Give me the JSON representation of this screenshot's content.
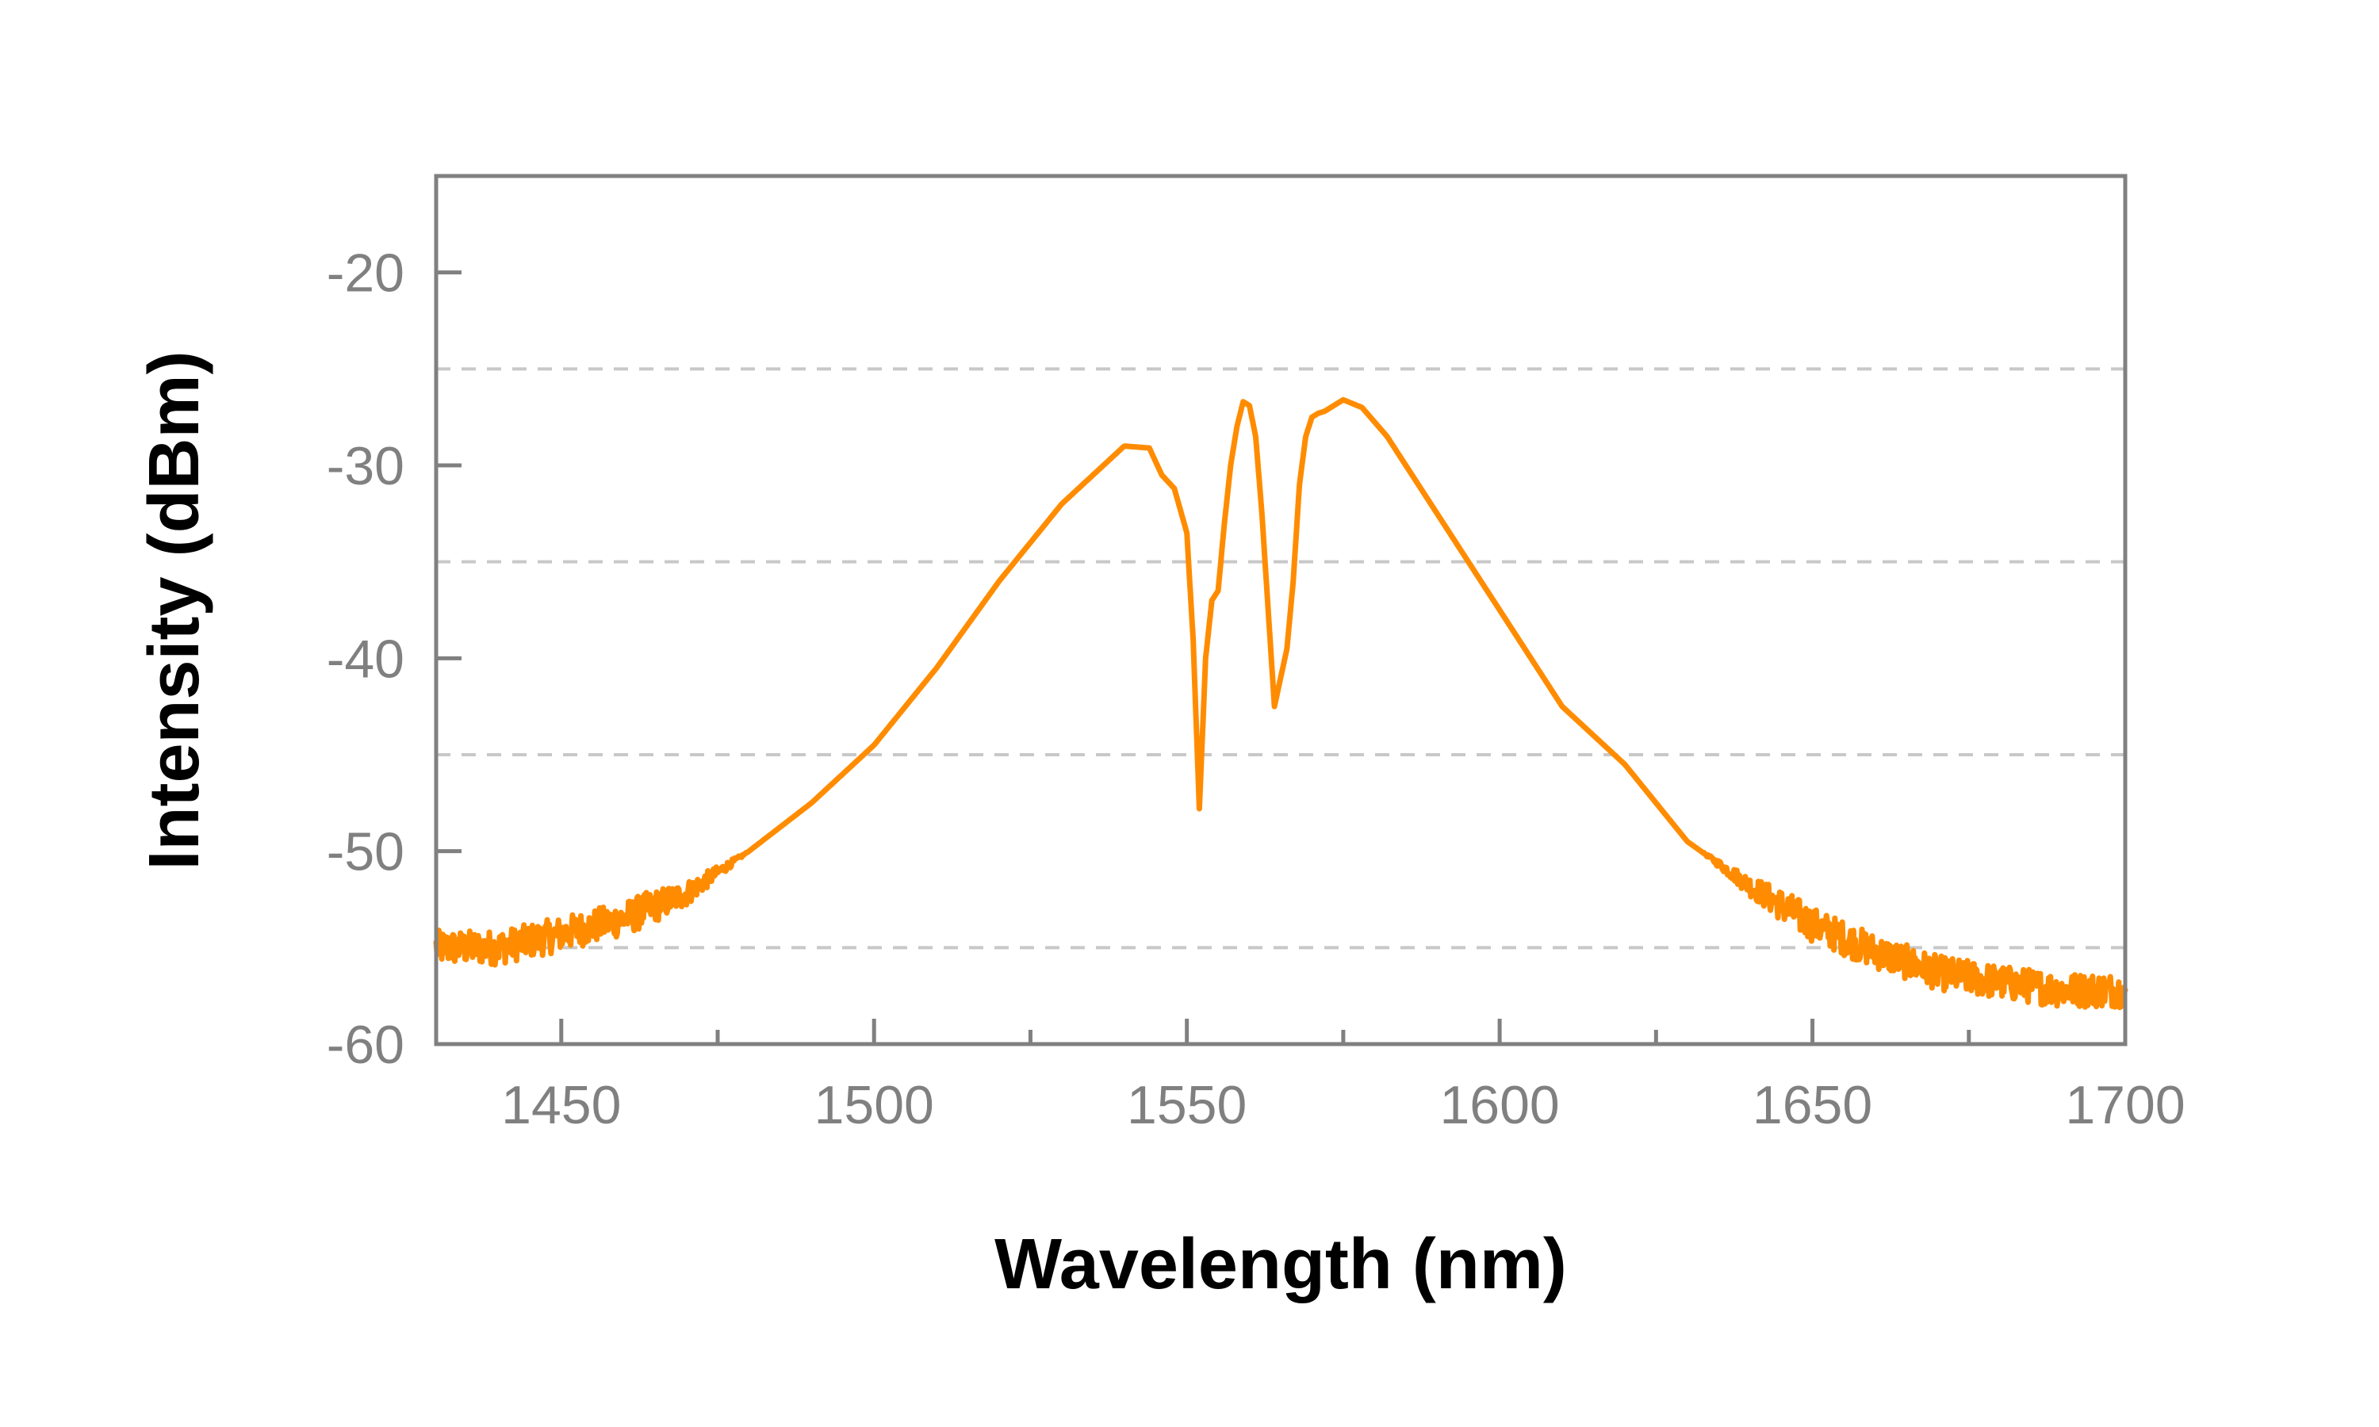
{
  "chart_data": {
    "type": "line",
    "xlabel": "Wavelength (nm)",
    "ylabel": "Intensity (dBm)",
    "xlim": [
      1430,
      1700
    ],
    "ylim": [
      -60,
      -15
    ],
    "x_ticks": [
      1450,
      1500,
      1550,
      1600,
      1650,
      1700
    ],
    "y_ticks": [
      -60,
      -50,
      -40,
      -30,
      -20
    ],
    "x_minor_ticks": [
      1475,
      1525,
      1575,
      1625,
      1675
    ],
    "y_gridlines_dashed": [
      -55,
      -45,
      -35,
      -25
    ],
    "grid": "horizontal dashed at -55, -45, -35, -25",
    "legend": "none",
    "line_color": "#FF8C00",
    "axis_color": "#808080",
    "grid_color": "#C8C8C8",
    "series": [
      {
        "noisy_below": -50,
        "noise_amplitude": 0.9,
        "x": [
          1430,
          1440,
          1450,
          1460,
          1470,
          1480,
          1490,
          1500,
          1510,
          1520,
          1530,
          1540,
          1544,
          1546,
          1548,
          1550,
          1551,
          1552,
          1553,
          1554,
          1555,
          1556,
          1557,
          1558,
          1559,
          1560,
          1561,
          1562,
          1563,
          1564,
          1565,
          1566,
          1567,
          1568,
          1569,
          1570,
          1571,
          1572,
          1573,
          1575,
          1578,
          1582,
          1585,
          1590,
          1595,
          1600,
          1605,
          1610,
          1615,
          1620,
          1625,
          1630,
          1640,
          1650,
          1660,
          1670,
          1680,
          1690,
          1700
        ],
        "y": [
          -55,
          -55,
          -54.3,
          -53.5,
          -52.2,
          -50,
          -47.5,
          -44.5,
          -40.5,
          -36,
          -32,
          -29,
          -29.1,
          -30.5,
          -31.2,
          -33.5,
          -39,
          -47.8,
          -40,
          -37,
          -36.5,
          -33,
          -30,
          -28,
          -26.7,
          -26.9,
          -28.5,
          -32.5,
          -37.5,
          -42.5,
          -41,
          -39.5,
          -36,
          -31,
          -28.5,
          -27.5,
          -27.3,
          -27.2,
          -27,
          -26.6,
          -27,
          -28.5,
          -30,
          -32.5,
          -35,
          -37.5,
          -40,
          -42.5,
          -44,
          -45.5,
          -47.5,
          -49.5,
          -51.8,
          -53.8,
          -55.2,
          -56.3,
          -56.8,
          -57.2,
          -57.2
        ]
      }
    ]
  }
}
